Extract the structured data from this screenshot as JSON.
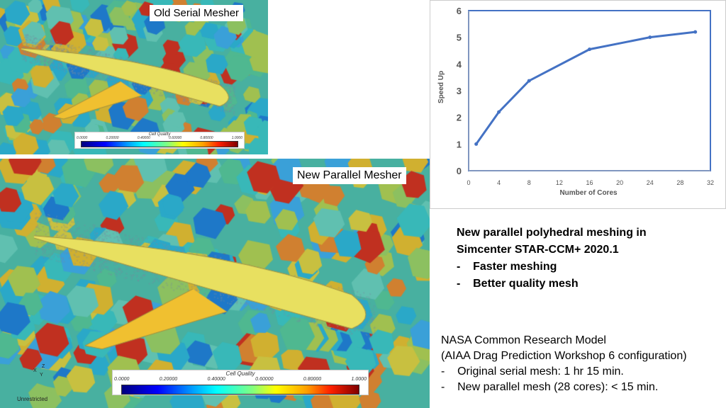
{
  "top_image": {
    "label": "Old Serial Mesher",
    "colorbar": {
      "title": "Cell Quality",
      "ticks": [
        "0.0000",
        "0.20000",
        "0.40000",
        "0.60000",
        "0.80000",
        "1.0000"
      ]
    }
  },
  "bottom_image": {
    "label": "New Parallel Mesher",
    "view_label": "Unrestricted",
    "axes": [
      "X",
      "Y",
      "Z"
    ],
    "colorbar": {
      "title": "Cell Quality",
      "ticks": [
        "0.0000",
        "0.20000",
        "0.40000",
        "0.60000",
        "0.80000",
        "1.0000"
      ]
    }
  },
  "chart_data": {
    "type": "line",
    "x": [
      1,
      4,
      8,
      16,
      24,
      30
    ],
    "series": [
      {
        "name": "Speed Up",
        "values": [
          1,
          2.2,
          3.37,
          4.55,
          5.0,
          5.2
        ]
      }
    ],
    "xlabel": "Number of Cores",
    "ylabel": "Speed Up",
    "xlim": [
      0,
      32
    ],
    "ylim": [
      0,
      6
    ],
    "xticks": [
      0,
      4,
      8,
      12,
      16,
      20,
      24,
      28,
      32
    ],
    "yticks": [
      0,
      1,
      2,
      3,
      4,
      5,
      6
    ],
    "color": "#4472c4"
  },
  "bullets1": {
    "title1": "New parallel polyhedral meshing in",
    "title2": "Simcenter STAR-CCM+ 2020.1",
    "items": [
      "Faster meshing",
      "Better quality mesh"
    ]
  },
  "bullets2": {
    "title1": "NASA Common Research Model",
    "title2": "(AIAA Drag Prediction Workshop 6 configuration)",
    "items": [
      "Original serial mesh: 1 hr 15 min.",
      "New parallel mesh (28 cores): < 15 min."
    ]
  }
}
